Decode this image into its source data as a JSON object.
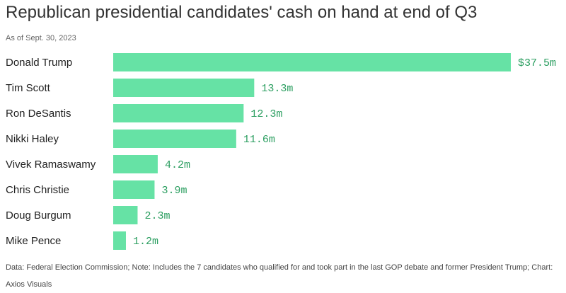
{
  "chart_data": {
    "type": "bar",
    "orientation": "horizontal",
    "title": "Republican presidential candidates' cash on hand at end of Q3",
    "subtitle": "As of Sept. 30, 2023",
    "categories": [
      "Donald Trump",
      "Tim Scott",
      "Ron DeSantis",
      "Nikki Haley",
      "Vivek Ramaswamy",
      "Chris Christie",
      "Doug Burgum",
      "Mike Pence"
    ],
    "values": [
      37.5,
      13.3,
      12.3,
      11.6,
      4.2,
      3.9,
      2.3,
      1.2
    ],
    "data_labels": [
      "$37.5m",
      "13.3m",
      "12.3m",
      "11.6m",
      "4.2m",
      "3.9m",
      "2.3m",
      "1.2m"
    ],
    "unit": "million USD",
    "xlim": [
      0,
      37.5
    ],
    "grid": false,
    "bar_color": "#66e2a5",
    "label_color": "#2b9e60"
  },
  "footer": "Data: Federal Election Commission; Note: Includes the 7 candidates who qualified for and took part in the last GOP debate and former President Trump; Chart: Axios Visuals"
}
